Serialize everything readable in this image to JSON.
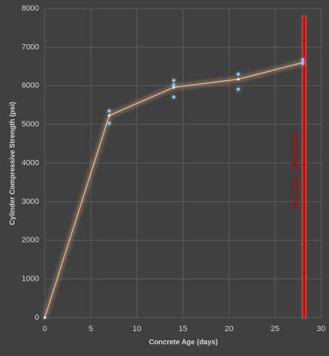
{
  "chart_data": {
    "type": "combo",
    "x_label": "Concrete Age (days)",
    "y_label": "Cylinder Compressive Strength (psi)",
    "xlim": [
      0,
      30
    ],
    "xticks": [
      0,
      5,
      10,
      15,
      20,
      25,
      30
    ],
    "ylim": [
      0,
      8000
    ],
    "yticks": [
      0,
      1000,
      2000,
      3000,
      4000,
      5000,
      6000,
      7000,
      8000
    ],
    "grid": true,
    "series": [
      {
        "type": "line",
        "color": "#f8c49a",
        "x": [
          0,
          7,
          14,
          21,
          28
        ],
        "values": [
          0,
          5230,
          5960,
          6170,
          6600
        ]
      },
      {
        "type": "scatter",
        "color": "#8fc3f0",
        "x": [
          7,
          7,
          14,
          14,
          14,
          21,
          21,
          28,
          28
        ],
        "values": [
          5350,
          5030,
          6140,
          6020,
          5710,
          6300,
          5910,
          6680,
          6580
        ]
      }
    ],
    "annotation": {
      "text": "Test Day - 4/28/2016",
      "x": 28.15,
      "y": [
        0,
        7800
      ],
      "color": "#c00000"
    }
  }
}
